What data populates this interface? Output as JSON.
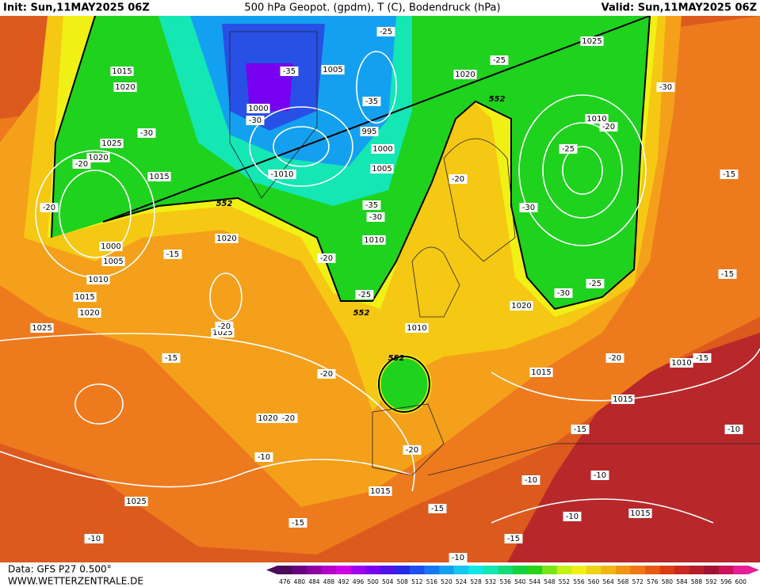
{
  "header": {
    "init": "Init: Sun,11MAY2025 06Z",
    "title": "500 hPa Geopot. (gpdm), T (C), Bodendruck (hPa)",
    "valid": "Valid: Sun,11MAY2025 06Z"
  },
  "footer": {
    "data": "Data: GFS P27 0.500°",
    "website": "WWW.WETTERZENTRALE.DE"
  },
  "contour_labels": [
    "1015",
    "1020",
    "-30",
    "1025",
    "1020",
    "-20",
    "1015",
    "-20",
    "1000",
    "1005",
    "1010",
    "1015",
    "1020",
    "1025",
    "-15",
    "1020",
    "-15",
    "1025",
    "-20",
    "1020",
    "-20",
    "-10",
    "1025",
    "-10",
    "-15",
    "-20",
    "-20",
    "-20",
    "1010",
    "1015",
    "-15",
    "1000",
    "-35",
    "-30",
    "1005",
    "-25",
    "-35",
    "995",
    "1000",
    "1005",
    "-1010",
    "-35",
    "-30",
    "1010",
    "-25",
    "552",
    "552",
    "552",
    "552",
    "-25",
    "1025",
    "-30",
    "-20",
    "1020",
    "-30",
    "1010",
    "-20",
    "-25",
    "-30",
    "1020",
    "-25",
    "-15",
    "-15",
    "1010",
    "-15",
    "-20",
    "1015",
    "1015",
    "-15",
    "-10",
    "-10",
    "-10",
    "1015",
    "-10",
    "-15",
    "-10",
    "-10"
  ],
  "colorbar": {
    "labels": [
      476,
      480,
      484,
      488,
      492,
      496,
      500,
      504,
      508,
      512,
      516,
      520,
      524,
      528,
      532,
      536,
      540,
      544,
      548,
      552,
      556,
      560,
      564,
      568,
      572,
      576,
      580,
      584,
      588,
      592,
      596,
      600
    ],
    "colors": [
      "#4b0a5a",
      "#6a0080",
      "#8c00a0",
      "#b400c8",
      "#d200e6",
      "#a000f0",
      "#7800f0",
      "#5014e6",
      "#2828e6",
      "#1e50f0",
      "#1478f0",
      "#14a0f0",
      "#14c8f0",
      "#14e6e6",
      "#14e6b4",
      "#14dc78",
      "#14d23c",
      "#28d214",
      "#78e614",
      "#c8f014",
      "#f0f014",
      "#f0d214",
      "#f0b414",
      "#f09614",
      "#f07814",
      "#e65a14",
      "#dc3c14",
      "#c8281e",
      "#b41e28",
      "#a01432",
      "#c8145a",
      "#e61e96"
    ]
  }
}
